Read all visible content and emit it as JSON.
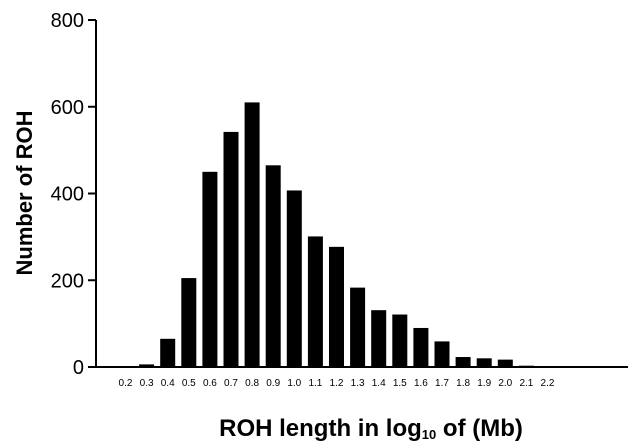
{
  "chart_data": {
    "type": "bar",
    "categories": [
      "0.2",
      "0.3",
      "0.4",
      "0.5",
      "0.6",
      "0.7",
      "0.8",
      "0.9",
      "1.0",
      "1.1",
      "1.2",
      "1.3",
      "1.4",
      "1.5",
      "1.6",
      "1.7",
      "1.8",
      "1.9",
      "2.0",
      "2.1",
      "2.2"
    ],
    "values": [
      1,
      6,
      65,
      205,
      450,
      542,
      610,
      465,
      407,
      301,
      277,
      183,
      131,
      121,
      90,
      59,
      23,
      20,
      17,
      3,
      2
    ],
    "ylabel": "Number of ROH",
    "xlabel": {
      "prefix": "ROH length in log",
      "subscript": "10",
      "suffix": " of (Mb)"
    },
    "yticks": [
      0,
      200,
      400,
      600,
      800
    ],
    "ylim": [
      0,
      800
    ],
    "bar_color": "#000000",
    "grid": false,
    "legend": "none"
  }
}
